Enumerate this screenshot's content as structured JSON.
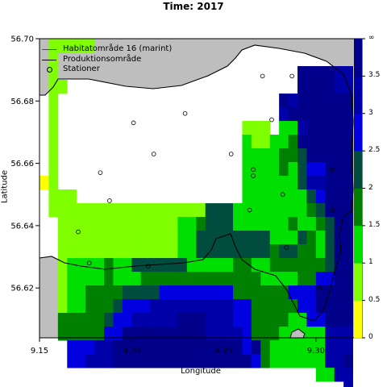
{
  "chart_data": {
    "type": "heatmap",
    "title": "Time: 2017",
    "xlabel": "Longitude",
    "ylabel": "Latitude",
    "xlim": [
      9.15,
      9.325
    ],
    "ylim": [
      56.604,
      56.7
    ],
    "xticks": [
      "9.15",
      "9.20",
      "9.25",
      "9.30"
    ],
    "yticks": [
      "56.62",
      "56.64",
      "56.66",
      "56.68",
      "56.70"
    ],
    "legend": {
      "position": "top-left",
      "entries": [
        {
          "label": "Habitatområde 16 (marint)",
          "symbol": "line",
          "color": "#ff0000"
        },
        {
          "label": "Produktionsområde",
          "symbol": "line",
          "color": "#000000"
        },
        {
          "label": "Stationer",
          "symbol": "circle",
          "color": "#000000"
        }
      ]
    },
    "colorbar": {
      "labels": [
        "0",
        "0.5",
        "1",
        "1.5",
        "2",
        "2.5",
        "3",
        "3.5",
        "∞"
      ],
      "colors": [
        "#ffff00",
        "#7fff00",
        "#00e000",
        "#008000",
        "#004d40",
        "#0000e0",
        "#0000a8",
        "#00008b"
      ]
    },
    "palette": {
      "1": "#7fff00",
      "2": "#00e000",
      "3": "#008000",
      "4": "#004d40",
      "5": "#0000e0",
      "6": "#0000a8",
      "7": "#00008b",
      "8": "#ffff00"
    },
    "grid": {
      "x0": 9.15,
      "y_top": 56.7,
      "dx": 0.005,
      "dy": 0.0044,
      "rows": [
        "0111110000000000000000000000000000",
        "0100000000000000000000000000000000",
        "0100000000000000000000000000777766",
        "0110000000000000000000000000777766",
        "0100000000000000000000000076777777",
        "0100000000000000000000000067777777",
        "0100000000000000000000111022677777",
        "0100000000000000000000211223777777",
        "0100000000000000000000222233477777",
        "0100000000000000000000222232455777",
        "8100000000000000000000222222466777",
        "0111000000000000000000222222245777",
        "0111111111111111114442222222234777",
        "0011111111111112234442222223223477",
        "0011111111111112244444444222432477",
        "0011111111111112244444444344332477",
        "0012222322444444222223322333333477",
        "0012222322233333333333332222335577",
        "0012233334444555555553333335557777",
        "0012233345556666666665533333557777",
        "0033333455666667776665533332255777",
        "0033333557777777776666533322222666",
        "0005556677777777777777573222222666",
        "0005566677777777777777753222222667",
        "0000000000000000000000000000002266",
        "0000000000000000000000000000000006"
      ]
    },
    "stations": [
      {
        "lon": 9.171,
        "lat": 56.638
      },
      {
        "lon": 9.183,
        "lat": 56.657
      },
      {
        "lon": 9.188,
        "lat": 56.648
      },
      {
        "lon": 9.201,
        "lat": 56.673
      },
      {
        "lon": 9.212,
        "lat": 56.663
      },
      {
        "lon": 9.229,
        "lat": 56.676
      },
      {
        "lon": 9.254,
        "lat": 56.663
      },
      {
        "lon": 9.266,
        "lat": 56.658
      },
      {
        "lon": 9.266,
        "lat": 56.656
      },
      {
        "lon": 9.264,
        "lat": 56.645
      },
      {
        "lon": 9.271,
        "lat": 56.688
      },
      {
        "lon": 9.276,
        "lat": 56.674
      },
      {
        "lon": 9.282,
        "lat": 56.65
      },
      {
        "lon": 9.284,
        "lat": 56.633
      },
      {
        "lon": 9.287,
        "lat": 56.688
      },
      {
        "lon": 9.309,
        "lat": 56.658
      },
      {
        "lon": 9.309,
        "lat": 56.645
      },
      {
        "lon": 9.302,
        "lat": 56.62
      },
      {
        "lon": 9.209,
        "lat": 56.627
      },
      {
        "lon": 9.177,
        "lat": 56.628
      }
    ]
  }
}
